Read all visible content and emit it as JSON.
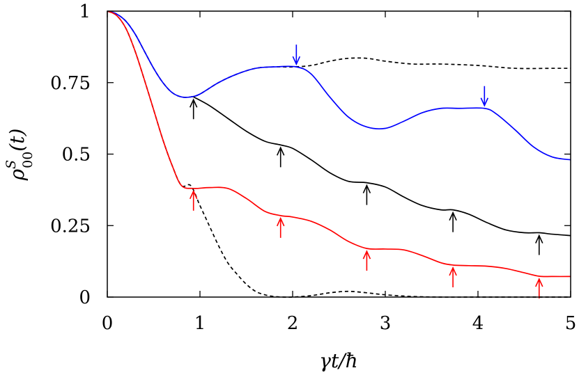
{
  "chart_data": {
    "type": "line",
    "xlabel": "γt/ħ",
    "ylabel": "ρ",
    "ylabel_sup": "S",
    "ylabel_sub": "00",
    "ylabel_arg": "(t)",
    "xlim": [
      0,
      5
    ],
    "ylim": [
      0,
      1
    ],
    "xticks": [
      0,
      1,
      2,
      3,
      4,
      5
    ],
    "xtick_labels": [
      "0",
      "1",
      "2",
      "3",
      "4",
      "5"
    ],
    "yticks": [
      0,
      0.25,
      0.5,
      0.75,
      1
    ],
    "ytick_labels": [
      "0",
      "0.25",
      "0.5",
      "0.75",
      "1"
    ],
    "grid": false,
    "colors": {
      "blue": "#0000ff",
      "black": "#000000",
      "red": "#ff0000"
    },
    "series": [
      {
        "style": "dashed",
        "color": "#000000",
        "x": [
          0,
          0.1,
          0.2,
          0.3,
          0.4,
          0.5,
          0.6,
          0.7,
          0.8,
          0.9,
          1.0,
          1.2,
          1.4,
          1.6,
          1.8,
          2.0,
          2.2,
          2.4,
          2.6,
          2.8,
          3.0,
          3.3,
          3.6,
          4.0,
          4.4,
          4.8,
          5.0
        ],
        "y": [
          1,
          0.99,
          0.965,
          0.92,
          0.86,
          0.8,
          0.75,
          0.715,
          0.7,
          0.7,
          0.71,
          0.75,
          0.78,
          0.8,
          0.805,
          0.805,
          0.81,
          0.825,
          0.835,
          0.835,
          0.825,
          0.815,
          0.815,
          0.81,
          0.8,
          0.8,
          0.8
        ]
      },
      {
        "style": "dashed",
        "color": "#000000",
        "x": [
          0,
          0.1,
          0.2,
          0.3,
          0.4,
          0.5,
          0.6,
          0.7,
          0.8,
          0.9,
          1.0,
          1.1,
          1.2,
          1.3,
          1.4,
          1.5,
          1.6,
          1.7,
          1.8,
          1.9,
          2.0,
          2.2,
          2.4,
          2.6,
          2.8,
          3.0,
          3.3,
          3.6,
          4.0,
          4.5,
          5.0
        ],
        "y": [
          1,
          0.985,
          0.94,
          0.86,
          0.76,
          0.655,
          0.55,
          0.46,
          0.39,
          0.39,
          0.32,
          0.25,
          0.18,
          0.12,
          0.08,
          0.045,
          0.02,
          0.008,
          0.002,
          0,
          0,
          0.005,
          0.015,
          0.02,
          0.015,
          0.008,
          0.002,
          0,
          0,
          0,
          0
        ]
      },
      {
        "style": "solid",
        "color": "#0000ff",
        "x": [
          0,
          0.1,
          0.2,
          0.3,
          0.4,
          0.5,
          0.6,
          0.7,
          0.8,
          0.9,
          1.0,
          1.2,
          1.4,
          1.6,
          1.8,
          2.04,
          2.2,
          2.4,
          2.6,
          2.8,
          3.0,
          3.2,
          3.4,
          3.6,
          3.8,
          4.07,
          4.2,
          4.4,
          4.6,
          4.8,
          5.0
        ],
        "y": [
          1,
          0.99,
          0.965,
          0.92,
          0.86,
          0.8,
          0.75,
          0.715,
          0.7,
          0.7,
          0.71,
          0.75,
          0.78,
          0.8,
          0.805,
          0.805,
          0.78,
          0.7,
          0.63,
          0.595,
          0.59,
          0.615,
          0.645,
          0.66,
          0.66,
          0.66,
          0.64,
          0.585,
          0.525,
          0.49,
          0.48
        ]
      },
      {
        "style": "solid",
        "color": "#000000",
        "x": [
          0.93,
          1.1,
          1.3,
          1.5,
          1.7,
          1.87,
          2.0,
          2.2,
          2.4,
          2.6,
          2.8,
          3.0,
          3.2,
          3.4,
          3.6,
          3.73,
          3.9,
          4.1,
          4.3,
          4.5,
          4.66,
          4.8,
          5.0
        ],
        "y": [
          0.7,
          0.67,
          0.625,
          0.58,
          0.545,
          0.532,
          0.52,
          0.48,
          0.435,
          0.405,
          0.4,
          0.385,
          0.35,
          0.32,
          0.305,
          0.305,
          0.29,
          0.26,
          0.235,
          0.225,
          0.225,
          0.22,
          0.215
        ]
      },
      {
        "style": "solid",
        "color": "#ff0000",
        "x": [
          0,
          0.1,
          0.2,
          0.3,
          0.4,
          0.5,
          0.6,
          0.7,
          0.8,
          0.93,
          1.1,
          1.3,
          1.5,
          1.7,
          1.87,
          2.0,
          2.2,
          2.4,
          2.6,
          2.8,
          3.0,
          3.2,
          3.4,
          3.6,
          3.73,
          3.9,
          4.1,
          4.3,
          4.5,
          4.66,
          4.8,
          5.0
        ],
        "y": [
          1,
          0.985,
          0.94,
          0.86,
          0.76,
          0.655,
          0.55,
          0.46,
          0.39,
          0.38,
          0.383,
          0.38,
          0.345,
          0.3,
          0.285,
          0.28,
          0.265,
          0.235,
          0.195,
          0.17,
          0.168,
          0.165,
          0.145,
          0.12,
          0.112,
          0.11,
          0.108,
          0.1,
          0.085,
          0.073,
          0.072,
          0.072
        ]
      }
    ],
    "arrows": [
      {
        "x": 2.04,
        "y": 0.805,
        "direction": "down",
        "color": "#0000ff"
      },
      {
        "x": 4.07,
        "y": 0.66,
        "direction": "down",
        "color": "#0000ff"
      },
      {
        "x": 0.93,
        "y": 0.7,
        "direction": "up",
        "color": "#000000"
      },
      {
        "x": 1.87,
        "y": 0.532,
        "direction": "up",
        "color": "#000000"
      },
      {
        "x": 2.8,
        "y": 0.4,
        "direction": "up",
        "color": "#000000"
      },
      {
        "x": 3.73,
        "y": 0.305,
        "direction": "up",
        "color": "#000000"
      },
      {
        "x": 4.66,
        "y": 0.225,
        "direction": "up",
        "color": "#000000"
      },
      {
        "x": 0.93,
        "y": 0.38,
        "direction": "up",
        "color": "#ff0000"
      },
      {
        "x": 1.87,
        "y": 0.285,
        "direction": "up",
        "color": "#ff0000"
      },
      {
        "x": 2.8,
        "y": 0.17,
        "direction": "up",
        "color": "#ff0000"
      },
      {
        "x": 3.73,
        "y": 0.112,
        "direction": "up",
        "color": "#ff0000"
      },
      {
        "x": 4.66,
        "y": 0.073,
        "direction": "up",
        "color": "#ff0000"
      }
    ]
  }
}
